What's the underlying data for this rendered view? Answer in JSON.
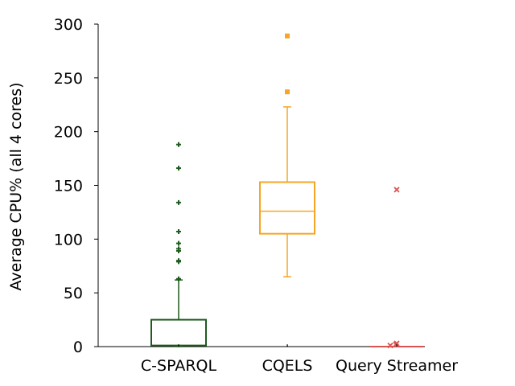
{
  "chart_data": {
    "type": "box",
    "title": "",
    "xlabel": "",
    "ylabel": "Average CPU% (all 4 cores)",
    "ylim": [
      0,
      300
    ],
    "yticks": [
      0,
      50,
      100,
      150,
      200,
      250,
      300
    ],
    "grid": false,
    "legend": "none",
    "categories": [
      "C-SPARQL",
      "CQELS",
      "Query Streamer"
    ],
    "series": [
      {
        "category": "C-SPARQL",
        "color": "#1f5a1f",
        "marker": "plus",
        "min": 0,
        "q1": 1,
        "median": 1,
        "q3": 25,
        "max": 62,
        "outliers": [
          63,
          79,
          80,
          89,
          91,
          96,
          107,
          134,
          166,
          188
        ]
      },
      {
        "category": "CQELS",
        "color": "#f5a623",
        "marker": "square",
        "min": 65,
        "q1": 105,
        "median": 126,
        "q3": 153,
        "max": 223,
        "outliers": [
          237,
          289
        ]
      },
      {
        "category": "Query Streamer",
        "color": "#d9534f",
        "marker": "cross",
        "min": 0,
        "q1": 0,
        "median": 0,
        "q3": 0,
        "max": 0,
        "outliers": [
          1,
          2,
          3,
          146
        ]
      }
    ]
  }
}
